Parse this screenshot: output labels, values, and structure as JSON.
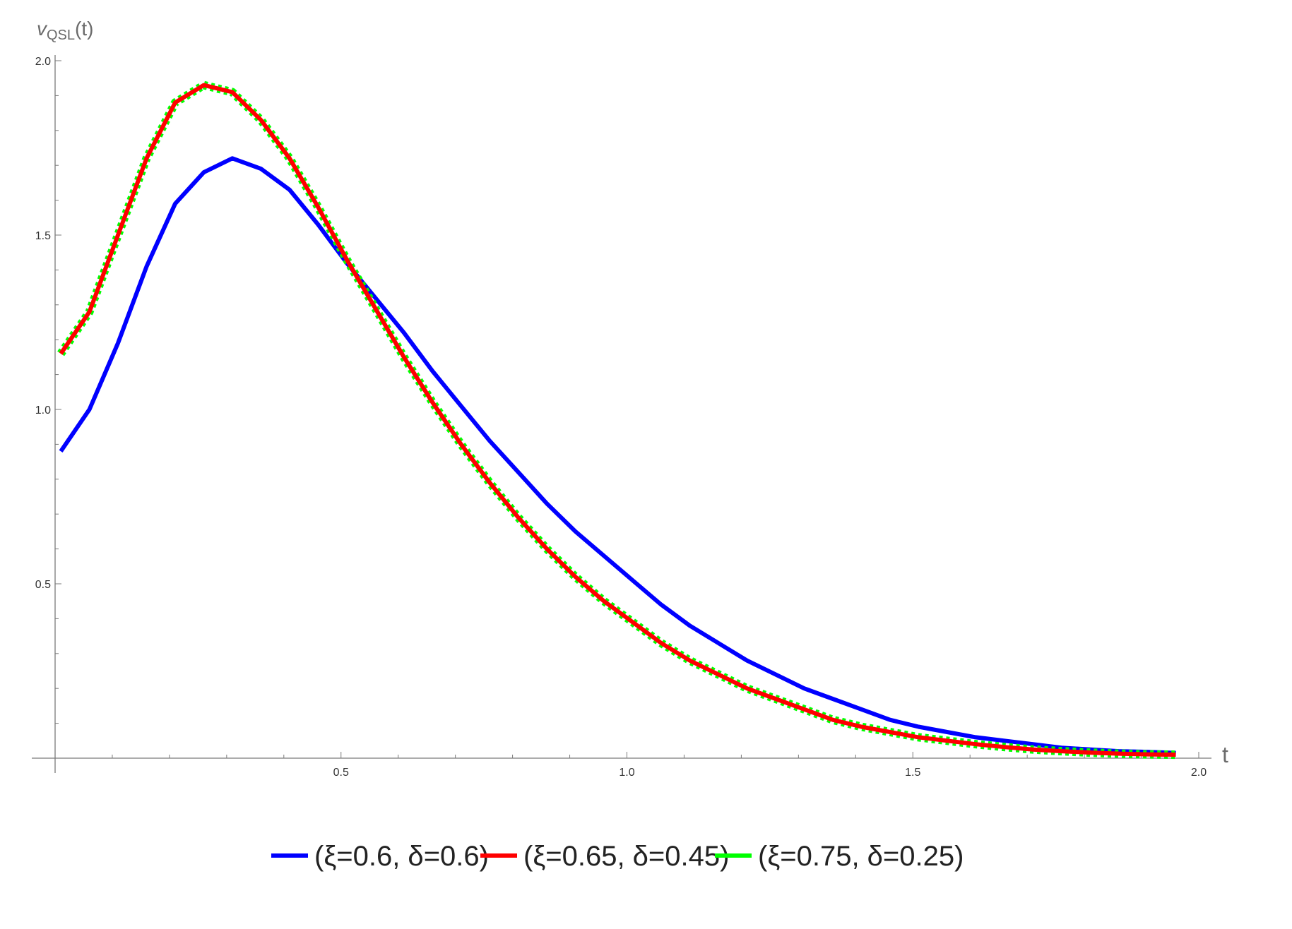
{
  "chart_data": {
    "type": "line",
    "ylabel_main": "v",
    "ylabel_sub": "QSL",
    "ylabel_tail": "(t)",
    "xlabel": "t",
    "xlim": [
      0,
      2.0
    ],
    "ylim": [
      0,
      2.0
    ],
    "x_ticks": [
      {
        "value": 0.5,
        "label": "0.5"
      },
      {
        "value": 1.0,
        "label": "1.0"
      },
      {
        "value": 1.5,
        "label": "1.5"
      },
      {
        "value": 2.0,
        "label": "2.0"
      }
    ],
    "y_ticks": [
      {
        "value": 0.5,
        "label": "0.5"
      },
      {
        "value": 1.0,
        "label": "1.0"
      },
      {
        "value": 1.5,
        "label": "1.5"
      },
      {
        "value": 2.0,
        "label": "2.0"
      }
    ],
    "grid": false,
    "legend_position": "bottom-center",
    "series": [
      {
        "name": "(ξ=0.6, δ=0.6)",
        "color": "#0000ff",
        "style": "solid",
        "x": [
          0.01,
          0.06,
          0.11,
          0.16,
          0.21,
          0.26,
          0.31,
          0.36,
          0.41,
          0.46,
          0.51,
          0.56,
          0.61,
          0.66,
          0.71,
          0.76,
          0.81,
          0.86,
          0.91,
          0.96,
          1.01,
          1.06,
          1.11,
          1.16,
          1.21,
          1.26,
          1.31,
          1.36,
          1.41,
          1.46,
          1.51,
          1.56,
          1.61,
          1.66,
          1.71,
          1.76,
          1.81,
          1.86,
          1.91,
          1.96
        ],
        "y": [
          0.88,
          1.0,
          1.19,
          1.41,
          1.59,
          1.68,
          1.72,
          1.69,
          1.63,
          1.53,
          1.42,
          1.32,
          1.22,
          1.11,
          1.01,
          0.91,
          0.82,
          0.73,
          0.65,
          0.58,
          0.51,
          0.44,
          0.38,
          0.33,
          0.28,
          0.24,
          0.2,
          0.17,
          0.14,
          0.11,
          0.09,
          0.075,
          0.06,
          0.05,
          0.04,
          0.03,
          0.025,
          0.02,
          0.018,
          0.015
        ]
      },
      {
        "name": "(ξ=0.65, δ=0.45)",
        "color": "#ff0000",
        "style": "solid",
        "x": [
          0.01,
          0.06,
          0.11,
          0.16,
          0.21,
          0.26,
          0.31,
          0.36,
          0.41,
          0.46,
          0.51,
          0.56,
          0.61,
          0.66,
          0.71,
          0.76,
          0.81,
          0.86,
          0.91,
          0.96,
          1.01,
          1.06,
          1.11,
          1.16,
          1.21,
          1.26,
          1.31,
          1.36,
          1.41,
          1.46,
          1.51,
          1.56,
          1.61,
          1.66,
          1.71,
          1.76,
          1.81,
          1.86,
          1.91,
          1.96
        ],
        "y": [
          1.16,
          1.28,
          1.5,
          1.72,
          1.88,
          1.93,
          1.91,
          1.83,
          1.72,
          1.58,
          1.43,
          1.29,
          1.15,
          1.02,
          0.9,
          0.79,
          0.69,
          0.6,
          0.52,
          0.45,
          0.39,
          0.33,
          0.28,
          0.24,
          0.2,
          0.17,
          0.14,
          0.11,
          0.09,
          0.075,
          0.06,
          0.05,
          0.04,
          0.032,
          0.025,
          0.02,
          0.016,
          0.013,
          0.011,
          0.01
        ]
      },
      {
        "name": "(ξ=0.75, δ=0.25)",
        "color": "#00ff00",
        "style": "dotted",
        "x": [
          0.01,
          0.06,
          0.11,
          0.16,
          0.21,
          0.26,
          0.31,
          0.36,
          0.41,
          0.46,
          0.51,
          0.56,
          0.61,
          0.66,
          0.71,
          0.76,
          0.81,
          0.86,
          0.91,
          0.96,
          1.01,
          1.06,
          1.11,
          1.16,
          1.21,
          1.26,
          1.31,
          1.36,
          1.41,
          1.46,
          1.51,
          1.56,
          1.61,
          1.66,
          1.71,
          1.76,
          1.81,
          1.86,
          1.91,
          1.96
        ],
        "y": [
          1.16,
          1.28,
          1.5,
          1.72,
          1.88,
          1.93,
          1.91,
          1.83,
          1.72,
          1.58,
          1.43,
          1.29,
          1.15,
          1.02,
          0.9,
          0.79,
          0.69,
          0.6,
          0.52,
          0.45,
          0.39,
          0.33,
          0.28,
          0.24,
          0.2,
          0.17,
          0.14,
          0.11,
          0.09,
          0.075,
          0.06,
          0.05,
          0.04,
          0.032,
          0.025,
          0.02,
          0.016,
          0.013,
          0.011,
          0.01
        ]
      }
    ]
  }
}
